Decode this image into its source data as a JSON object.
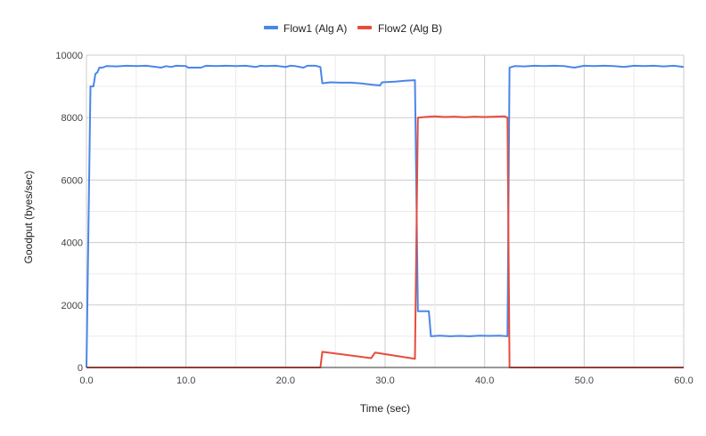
{
  "chart_data": {
    "type": "line",
    "xlabel": "Time (sec)",
    "ylabel": "Goodput (byes/sec)",
    "xlim": [
      0,
      60
    ],
    "ylim": [
      0,
      10000
    ],
    "x_ticks": [
      0,
      10,
      20,
      30,
      40,
      50,
      60
    ],
    "x_tick_labels": [
      "0.0",
      "10.0",
      "20.0",
      "30.0",
      "40.0",
      "50.0",
      "60.0"
    ],
    "y_ticks": [
      0,
      2000,
      4000,
      6000,
      8000,
      10000
    ],
    "y_tick_labels": [
      "0",
      "2000",
      "4000",
      "6000",
      "8000",
      "10000"
    ],
    "grid": true,
    "legend_position": "top-center",
    "series": [
      {
        "name": "Flow1 (Alg A)",
        "color": "#4a86e8",
        "points": [
          [
            0,
            0
          ],
          [
            0.4,
            9000
          ],
          [
            0.7,
            9000
          ],
          [
            0.9,
            9400
          ],
          [
            1.1,
            9450
          ],
          [
            1.3,
            9600
          ],
          [
            1.6,
            9600
          ],
          [
            2.0,
            9650
          ],
          [
            3.0,
            9640
          ],
          [
            4.0,
            9660
          ],
          [
            5.0,
            9650
          ],
          [
            6.0,
            9660
          ],
          [
            7.0,
            9620
          ],
          [
            7.5,
            9600
          ],
          [
            8.0,
            9650
          ],
          [
            8.5,
            9620
          ],
          [
            9.0,
            9660
          ],
          [
            10.0,
            9650
          ],
          [
            10.2,
            9600
          ],
          [
            11.5,
            9600
          ],
          [
            12.0,
            9660
          ],
          [
            13.0,
            9650
          ],
          [
            14.0,
            9660
          ],
          [
            15.0,
            9650
          ],
          [
            16.0,
            9660
          ],
          [
            17.0,
            9620
          ],
          [
            17.5,
            9660
          ],
          [
            18.0,
            9650
          ],
          [
            19.0,
            9660
          ],
          [
            20.0,
            9620
          ],
          [
            20.5,
            9660
          ],
          [
            21.0,
            9650
          ],
          [
            21.8,
            9600
          ],
          [
            22.2,
            9660
          ],
          [
            23.0,
            9660
          ],
          [
            23.5,
            9620
          ],
          [
            23.7,
            9100
          ],
          [
            24.5,
            9130
          ],
          [
            25.5,
            9120
          ],
          [
            26.5,
            9120
          ],
          [
            27.5,
            9100
          ],
          [
            28.5,
            9060
          ],
          [
            29.5,
            9030
          ],
          [
            29.7,
            9130
          ],
          [
            31.0,
            9150
          ],
          [
            32.0,
            9180
          ],
          [
            33.0,
            9200
          ],
          [
            33.3,
            1800
          ],
          [
            34.4,
            1800
          ],
          [
            34.6,
            1000
          ],
          [
            35.5,
            1020
          ],
          [
            36.5,
            1000
          ],
          [
            37.5,
            1010
          ],
          [
            38.5,
            1000
          ],
          [
            39.5,
            1020
          ],
          [
            40.5,
            1010
          ],
          [
            41.5,
            1020
          ],
          [
            42.3,
            1000
          ],
          [
            42.5,
            9600
          ],
          [
            43.0,
            9650
          ],
          [
            44.0,
            9640
          ],
          [
            45.0,
            9660
          ],
          [
            46.0,
            9650
          ],
          [
            47.0,
            9660
          ],
          [
            48.0,
            9650
          ],
          [
            49.0,
            9600
          ],
          [
            50.0,
            9660
          ],
          [
            51.0,
            9650
          ],
          [
            52.0,
            9660
          ],
          [
            53.0,
            9650
          ],
          [
            54.0,
            9620
          ],
          [
            55.0,
            9660
          ],
          [
            56.0,
            9650
          ],
          [
            57.0,
            9660
          ],
          [
            58.0,
            9640
          ],
          [
            59.0,
            9660
          ],
          [
            60.0,
            9620
          ]
        ]
      },
      {
        "name": "Flow2 (Alg B)",
        "color": "#e74c3c",
        "points": [
          [
            0,
            0
          ],
          [
            23.5,
            0
          ],
          [
            23.7,
            500
          ],
          [
            28.6,
            300
          ],
          [
            29.0,
            480
          ],
          [
            33.0,
            280
          ],
          [
            33.3,
            8000
          ],
          [
            34.0,
            8020
          ],
          [
            35.0,
            8040
          ],
          [
            36.0,
            8020
          ],
          [
            37.0,
            8030
          ],
          [
            38.0,
            8010
          ],
          [
            39.0,
            8030
          ],
          [
            40.0,
            8020
          ],
          [
            41.0,
            8030
          ],
          [
            42.0,
            8040
          ],
          [
            42.3,
            8000
          ],
          [
            42.5,
            0
          ],
          [
            60.0,
            0
          ]
        ]
      }
    ]
  }
}
